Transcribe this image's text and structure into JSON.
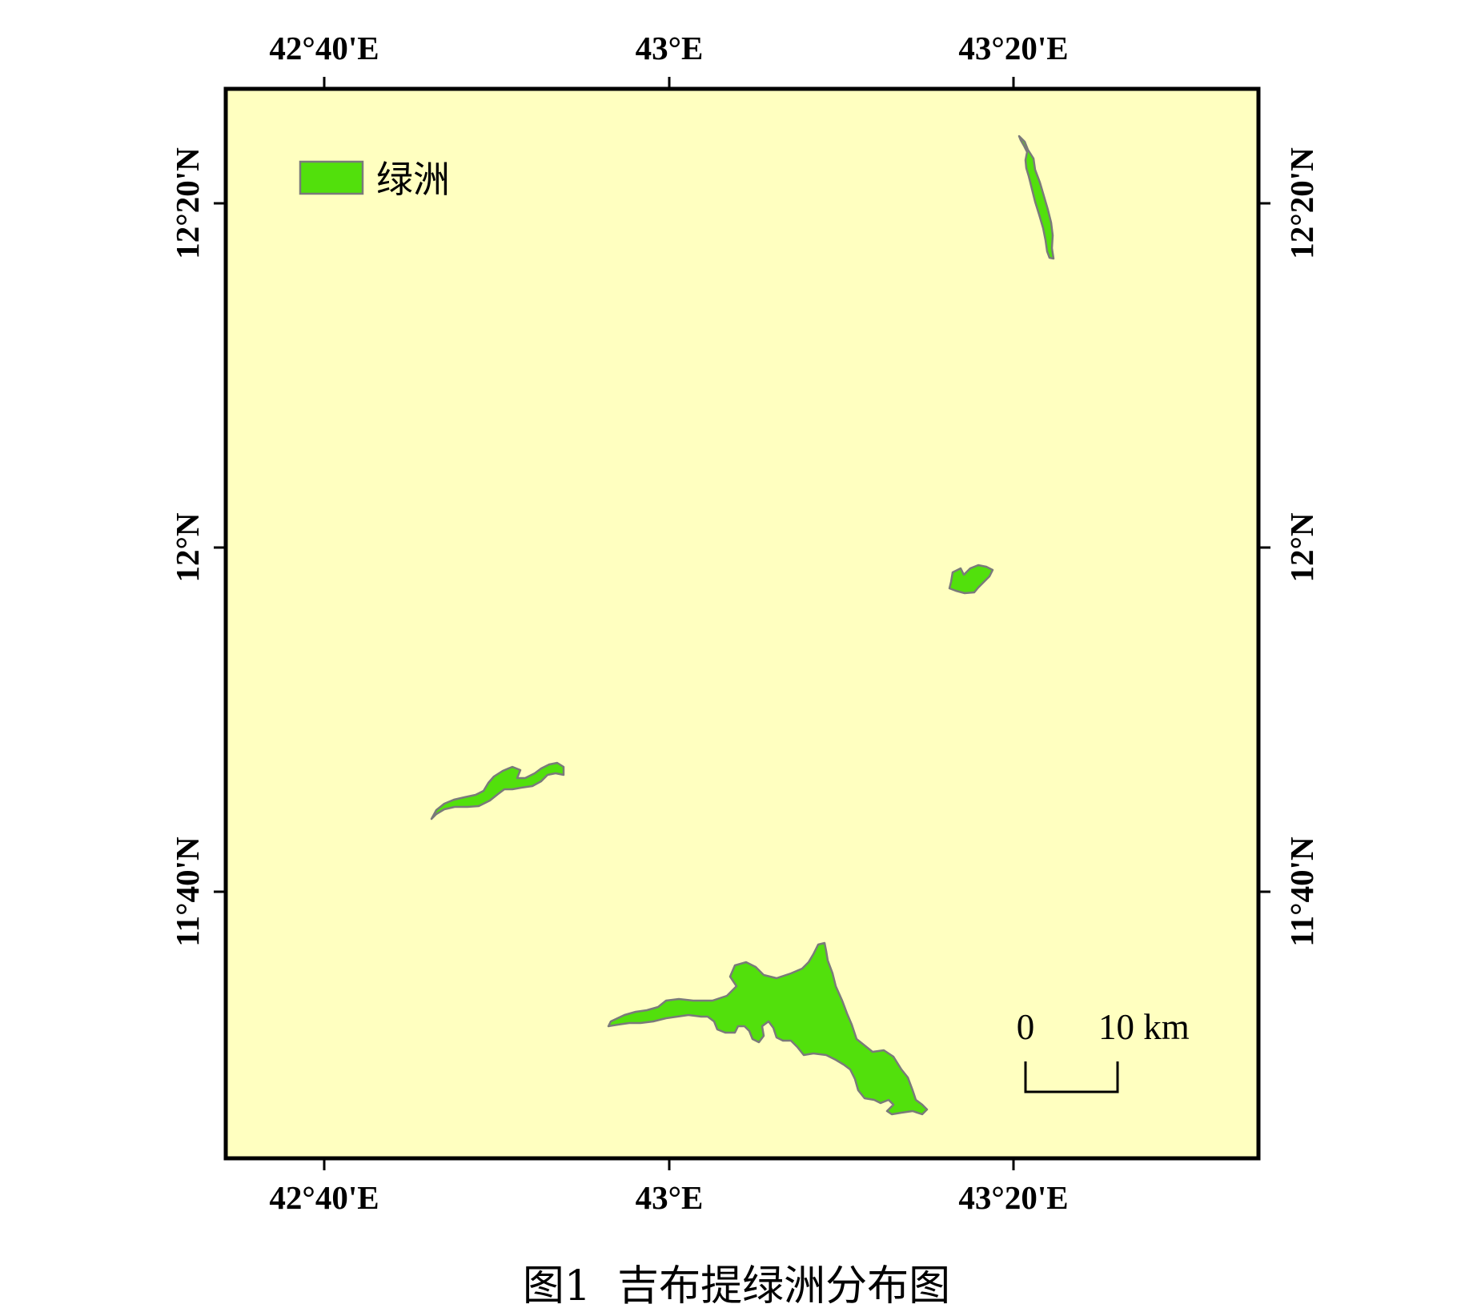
{
  "caption": "图1  吉布提绿洲分布图",
  "legend": {
    "label": "绿洲",
    "color": "#52e00c"
  },
  "colors": {
    "background": "#ffffc0",
    "oasis_fill": "#52e00c",
    "oasis_stroke": "#7a7a7a",
    "frame": "#000000"
  },
  "axes": {
    "longitude_labels": [
      "42°40'E",
      "43°E",
      "43°20'E"
    ],
    "latitude_labels": [
      "12°20'N",
      "12°N",
      "11°40'N"
    ]
  },
  "scale_bar": {
    "start_label": "0",
    "end_label": "10 km"
  },
  "features": [
    {
      "name": "oasis-north"
    },
    {
      "name": "oasis-middle"
    },
    {
      "name": "oasis-west"
    },
    {
      "name": "oasis-south"
    }
  ]
}
